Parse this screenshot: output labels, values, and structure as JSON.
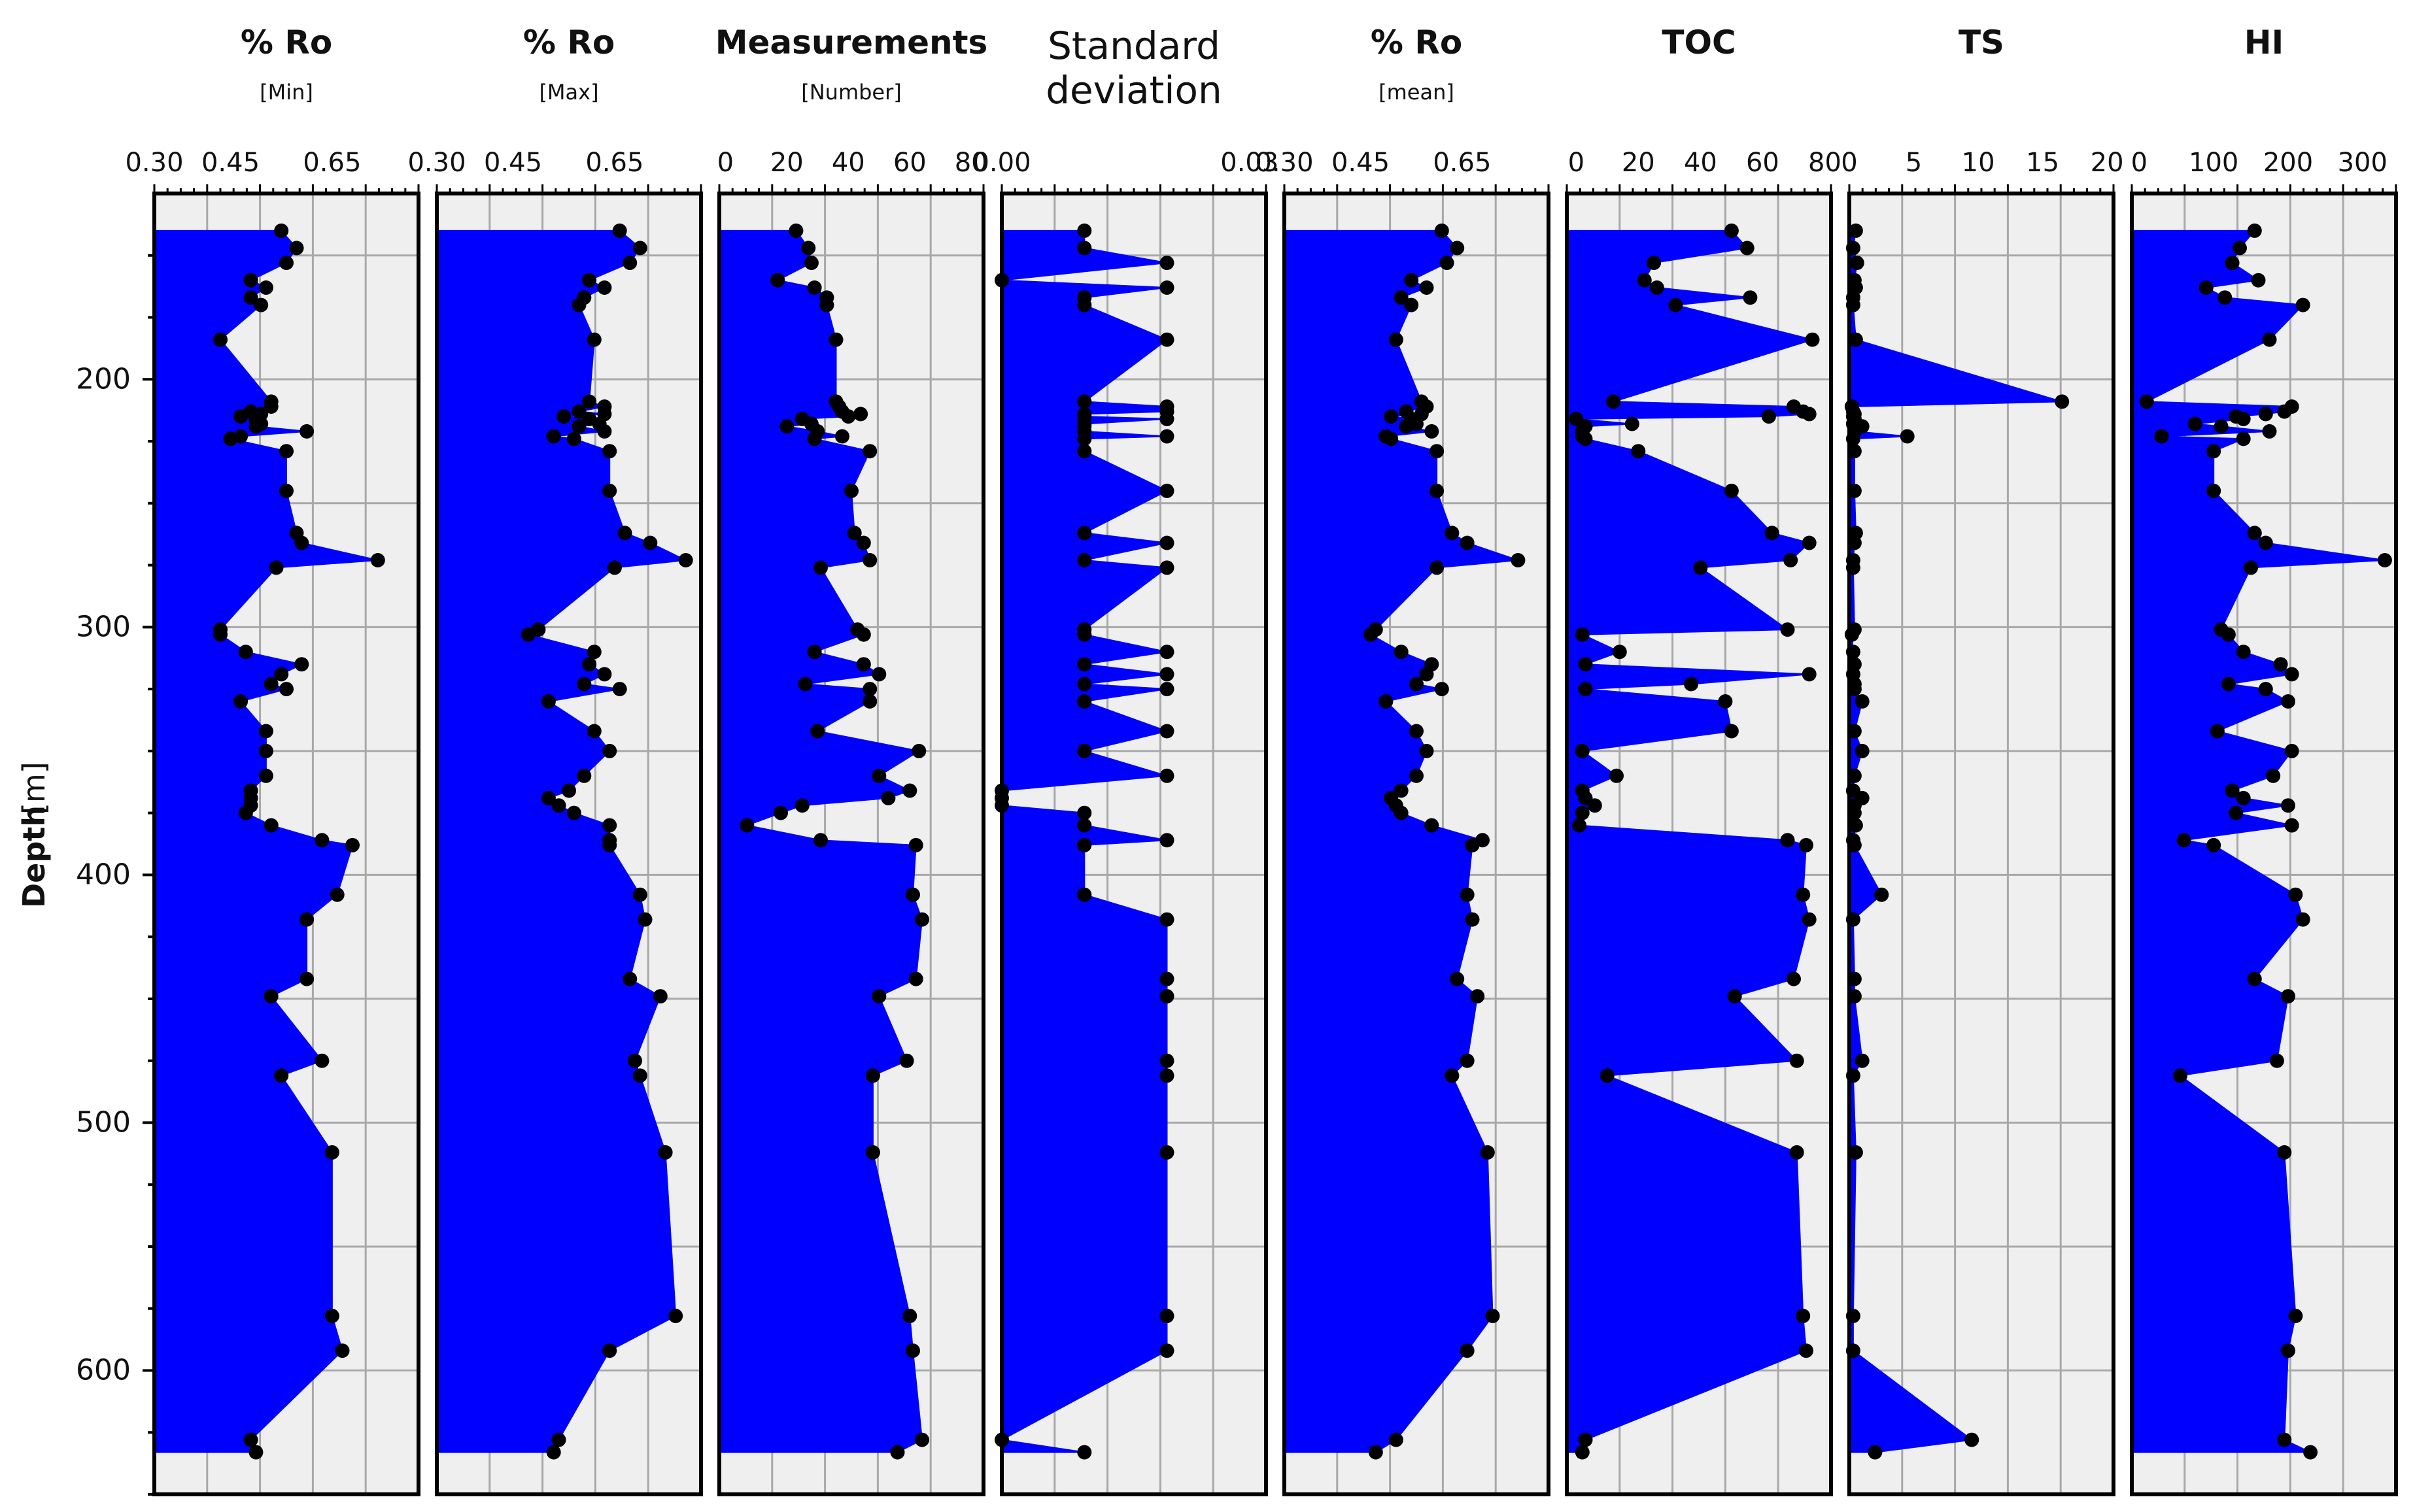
{
  "figure": {
    "y_label": "Depth",
    "y_unit": "[m]"
  },
  "chart_data": {
    "type": "area",
    "shared_y": {
      "label": "Depth [m]",
      "ylim": [
        125,
        650
      ],
      "inverted": true,
      "ticks": [
        200,
        300,
        400,
        500,
        600
      ]
    },
    "depths": [
      140,
      147,
      153,
      160,
      163,
      167,
      170,
      184,
      209,
      211,
      213,
      214,
      215,
      216,
      218,
      219,
      221,
      223,
      224,
      229,
      245,
      262,
      266,
      273,
      276,
      301,
      303,
      310,
      315,
      319,
      323,
      325,
      330,
      342,
      350,
      360,
      366,
      369,
      372,
      375,
      380,
      386,
      388,
      408,
      418,
      442,
      449,
      475,
      481,
      512,
      578,
      592,
      628,
      633
    ],
    "tracks": [
      {
        "title": "% Ro",
        "subtitle": "[Min]",
        "xlim": [
          0.3,
          0.82
        ],
        "xticks": [
          0.3,
          0.45,
          0.65
        ],
        "xtick_labels": [
          "0.30",
          "0.45",
          "0.65"
        ],
        "values": [
          0.55,
          0.58,
          0.56,
          0.49,
          0.52,
          0.49,
          0.51,
          0.43,
          0.53,
          0.53,
          0.49,
          0.51,
          0.47,
          0.5,
          0.51,
          0.5,
          0.6,
          0.47,
          0.45,
          0.56,
          0.56,
          0.58,
          0.59,
          0.74,
          0.54,
          0.43,
          0.43,
          0.48,
          0.59,
          0.55,
          0.53,
          0.56,
          0.47,
          0.52,
          0.52,
          0.52,
          0.49,
          0.49,
          0.49,
          0.48,
          0.53,
          0.63,
          0.69,
          0.66,
          0.6,
          0.6,
          0.53,
          0.63,
          0.55,
          0.65,
          0.65,
          0.67,
          0.49,
          0.5
        ]
      },
      {
        "title": "% Ro",
        "subtitle": "[Max]",
        "xlim": [
          0.3,
          0.82
        ],
        "xticks": [
          0.3,
          0.45,
          0.65
        ],
        "xtick_labels": [
          "0.30",
          "0.45",
          "0.65"
        ],
        "values": [
          0.66,
          0.7,
          0.68,
          0.6,
          0.63,
          0.59,
          0.58,
          0.61,
          0.6,
          0.63,
          0.58,
          0.63,
          0.55,
          0.6,
          0.62,
          0.58,
          0.63,
          0.53,
          0.57,
          0.64,
          0.64,
          0.67,
          0.72,
          0.79,
          0.65,
          0.5,
          0.48,
          0.61,
          0.6,
          0.63,
          0.59,
          0.66,
          0.52,
          0.61,
          0.64,
          0.59,
          0.56,
          0.52,
          0.54,
          0.57,
          0.64,
          0.64,
          0.64,
          0.7,
          0.71,
          0.68,
          0.74,
          0.69,
          0.7,
          0.75,
          0.77,
          0.64,
          0.54,
          0.53
        ]
      },
      {
        "title": "Measurements",
        "subtitle": "[Number]",
        "xlim": [
          -2,
          84
        ],
        "xticks": [
          0,
          20,
          40,
          60,
          80
        ],
        "xtick_labels": [
          "0",
          "20",
          "40",
          "60",
          "80"
        ],
        "values": [
          23,
          27,
          28,
          17,
          29,
          33,
          33,
          36,
          36,
          37,
          38,
          44,
          40,
          25,
          28,
          20,
          30,
          38,
          29,
          47,
          41,
          42,
          45,
          47,
          31,
          43,
          45,
          29,
          45,
          50,
          26,
          47,
          47,
          30,
          63,
          50,
          60,
          53,
          25,
          18,
          7,
          31,
          62,
          61,
          64,
          62,
          50,
          59,
          48,
          48,
          60,
          61,
          64,
          56
        ]
      },
      {
        "title": "Standard",
        "title2": "deviation",
        "plain": true,
        "subtitle": "",
        "xlim": [
          0,
          0.032
        ],
        "xticks": [
          0.0,
          0.03
        ],
        "xtick_labels": [
          "0.00",
          "0.03"
        ],
        "values": [
          0.01,
          0.01,
          0.02,
          0.0,
          0.02,
          0.01,
          0.01,
          0.02,
          0.01,
          0.02,
          0.02,
          0.01,
          0.01,
          0.02,
          0.01,
          0.01,
          0.01,
          0.02,
          0.01,
          0.01,
          0.02,
          0.01,
          0.02,
          0.01,
          0.02,
          0.01,
          0.01,
          0.02,
          0.01,
          0.02,
          0.01,
          0.02,
          0.01,
          0.02,
          0.01,
          0.02,
          0.0,
          0.0,
          0.0,
          0.01,
          0.01,
          0.02,
          0.01,
          0.01,
          0.02,
          0.02,
          0.02,
          0.02,
          0.02,
          0.02,
          0.02,
          0.02,
          0.0,
          0.01
        ]
      },
      {
        "title": "% Ro",
        "subtitle": "[mean]",
        "xlim": [
          0.3,
          0.82
        ],
        "xticks": [
          0.3,
          0.45,
          0.65
        ],
        "xtick_labels": [
          "0.30",
          "0.45",
          "0.65"
        ],
        "values": [
          0.61,
          0.64,
          0.62,
          0.55,
          0.58,
          0.53,
          0.55,
          0.52,
          0.57,
          0.58,
          0.54,
          0.57,
          0.51,
          0.55,
          0.56,
          0.54,
          0.59,
          0.5,
          0.51,
          0.6,
          0.6,
          0.63,
          0.66,
          0.76,
          0.6,
          0.48,
          0.47,
          0.53,
          0.59,
          0.58,
          0.56,
          0.61,
          0.5,
          0.56,
          0.58,
          0.56,
          0.53,
          0.51,
          0.52,
          0.53,
          0.59,
          0.69,
          0.67,
          0.66,
          0.67,
          0.64,
          0.68,
          0.66,
          0.63,
          0.7,
          0.71,
          0.66,
          0.52,
          0.48
        ]
      },
      {
        "title": "TOC",
        "subtitle": "",
        "xlim": [
          -3,
          82
        ],
        "xticks": [
          0,
          20,
          40,
          60,
          80
        ],
        "xtick_labels": [
          "0",
          "20",
          "40",
          "60",
          "80"
        ],
        "values": [
          50,
          55,
          25,
          22,
          26,
          56,
          32,
          76,
          12,
          70,
          73,
          75,
          62,
          0,
          18,
          3,
          2,
          2,
          3,
          20,
          50,
          63,
          75,
          69,
          40,
          68,
          2,
          14,
          3,
          75,
          37,
          3,
          48,
          50,
          2,
          13,
          2,
          3,
          6,
          2,
          1,
          68,
          74,
          73,
          75,
          70,
          51,
          71,
          10,
          71,
          73,
          74,
          3,
          2
        ]
      },
      {
        "title": "TS",
        "subtitle": "",
        "xlim": [
          0,
          20.5
        ],
        "xticks": [
          0,
          5,
          10,
          15,
          20
        ],
        "xtick_labels": [
          "0",
          "5",
          "10",
          "15",
          "20"
        ],
        "values": [
          0.5,
          0.3,
          0.6,
          0.4,
          0.5,
          0.3,
          0.3,
          0.5,
          16.5,
          0.2,
          0.3,
          0.4,
          0.3,
          0.4,
          0.3,
          1.0,
          0.4,
          4.5,
          0.3,
          0.4,
          0.4,
          0.5,
          0.4,
          0.3,
          0.3,
          0.4,
          0.2,
          0.3,
          0.4,
          0.3,
          0.4,
          0.4,
          1.0,
          0.4,
          1.0,
          0.4,
          0.3,
          1.0,
          0.4,
          0.4,
          0.5,
          0.3,
          0.4,
          2.5,
          0.3,
          0.4,
          0.4,
          1.0,
          0.3,
          0.5,
          0.3,
          0.3,
          9.5,
          2.0
        ]
      },
      {
        "title": "HI",
        "subtitle": "",
        "xlim": [
          -10,
          345
        ],
        "xticks": [
          0,
          100,
          200,
          300
        ],
        "xtick_labels": [
          "0",
          "100",
          "200",
          "300"
        ],
        "values": [
          155,
          135,
          125,
          160,
          90,
          115,
          220,
          175,
          10,
          205,
          195,
          170,
          130,
          140,
          75,
          110,
          175,
          30,
          140,
          100,
          100,
          155,
          170,
          330,
          150,
          110,
          120,
          140,
          190,
          205,
          120,
          170,
          200,
          105,
          205,
          180,
          125,
          140,
          200,
          130,
          205,
          60,
          100,
          210,
          220,
          155,
          200,
          185,
          55,
          195,
          210,
          200,
          195,
          230
        ]
      }
    ]
  }
}
